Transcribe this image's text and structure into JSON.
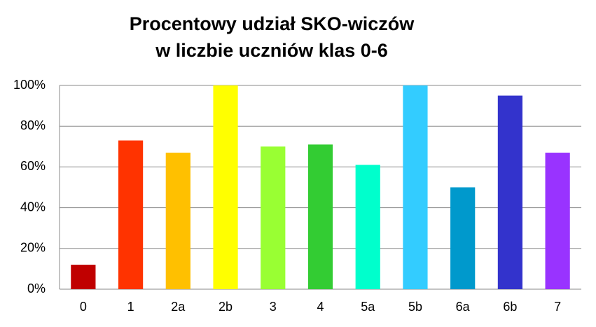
{
  "chart_data": {
    "type": "bar",
    "title": [
      "Procentowy udział SKO-wiczów",
      "w liczbie uczniów klas 0-6"
    ],
    "categories": [
      "0",
      "1",
      "2a",
      "2b",
      "3",
      "4",
      "5a",
      "5b",
      "6a",
      "6b",
      "7"
    ],
    "values": [
      12,
      73,
      67,
      100,
      70,
      71,
      61,
      100,
      50,
      95,
      67
    ],
    "colors": [
      "#c00000",
      "#ff3300",
      "#ffc000",
      "#ffff00",
      "#99ff33",
      "#33cc33",
      "#00ffcc",
      "#33ccff",
      "#0099cc",
      "#3333cc",
      "#9933ff"
    ],
    "ylim": [
      0,
      100
    ],
    "yticks": [
      {
        "value": 0,
        "label": "0%"
      },
      {
        "value": 20,
        "label": "20%"
      },
      {
        "value": 40,
        "label": "40%"
      },
      {
        "value": 60,
        "label": "60%"
      },
      {
        "value": 80,
        "label": "80%"
      },
      {
        "value": 100,
        "label": "100%"
      }
    ],
    "grid": true
  }
}
